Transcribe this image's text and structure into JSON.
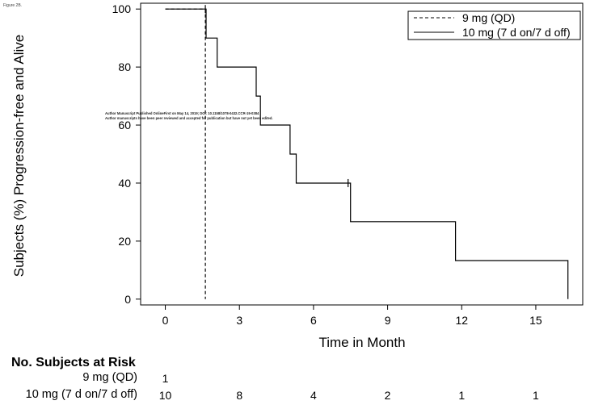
{
  "figure_label": "Figure 2B.",
  "watermark": {
    "line1": "Author Manuscript Published OnlineFirst on May 14, 2019; DOI: 10.1158/1078-0432.CCR-19-0384",
    "line2": "Author manuscripts have been peer reviewed and accepted for publication but have not yet been edited."
  },
  "chart_data": {
    "type": "line",
    "title": "",
    "xlabel": "Time in Month",
    "ylabel": "Subjects (%) Progression-free and Alive",
    "xlim": [
      -1.0,
      16.9
    ],
    "ylim": [
      -2,
      102
    ],
    "x_ticks": [
      0,
      3,
      6,
      9,
      12,
      15
    ],
    "y_ticks": [
      0,
      20,
      40,
      60,
      80,
      100
    ],
    "legend_position": "top-right",
    "series": [
      {
        "name": "9 mg (QD)",
        "style": "dashed",
        "color": "#000000",
        "steps": [
          [
            0,
            100
          ],
          [
            1.62,
            100
          ],
          [
            1.62,
            0
          ]
        ],
        "censor_marks": [
          [
            1.62,
            100
          ]
        ]
      },
      {
        "name": "10 mg (7 d on/7 d off)",
        "style": "solid",
        "color": "#000000",
        "steps": [
          [
            0,
            100
          ],
          [
            1.65,
            100
          ],
          [
            1.65,
            90
          ],
          [
            2.1,
            90
          ],
          [
            2.1,
            80
          ],
          [
            3.68,
            80
          ],
          [
            3.68,
            70
          ],
          [
            3.85,
            70
          ],
          [
            3.85,
            60
          ],
          [
            5.05,
            60
          ],
          [
            5.05,
            50
          ],
          [
            5.3,
            50
          ],
          [
            5.3,
            40
          ],
          [
            7.5,
            40
          ],
          [
            7.5,
            26.7
          ],
          [
            11.75,
            26.7
          ],
          [
            11.75,
            13.3
          ],
          [
            16.3,
            13.3
          ],
          [
            16.3,
            0
          ]
        ],
        "censor_marks": [
          [
            7.4,
            40
          ]
        ]
      }
    ]
  },
  "risk_table": {
    "title": "No. Subjects at Risk",
    "times": [
      0,
      3,
      6,
      9,
      12,
      15
    ],
    "rows": [
      {
        "label": "9 mg (QD)",
        "values": [
          "1",
          "",
          "",
          "",
          "",
          ""
        ]
      },
      {
        "label": "10 mg (7 d on/7 d off)",
        "values": [
          "10",
          "8",
          "4",
          "2",
          "1",
          "1"
        ]
      }
    ]
  }
}
